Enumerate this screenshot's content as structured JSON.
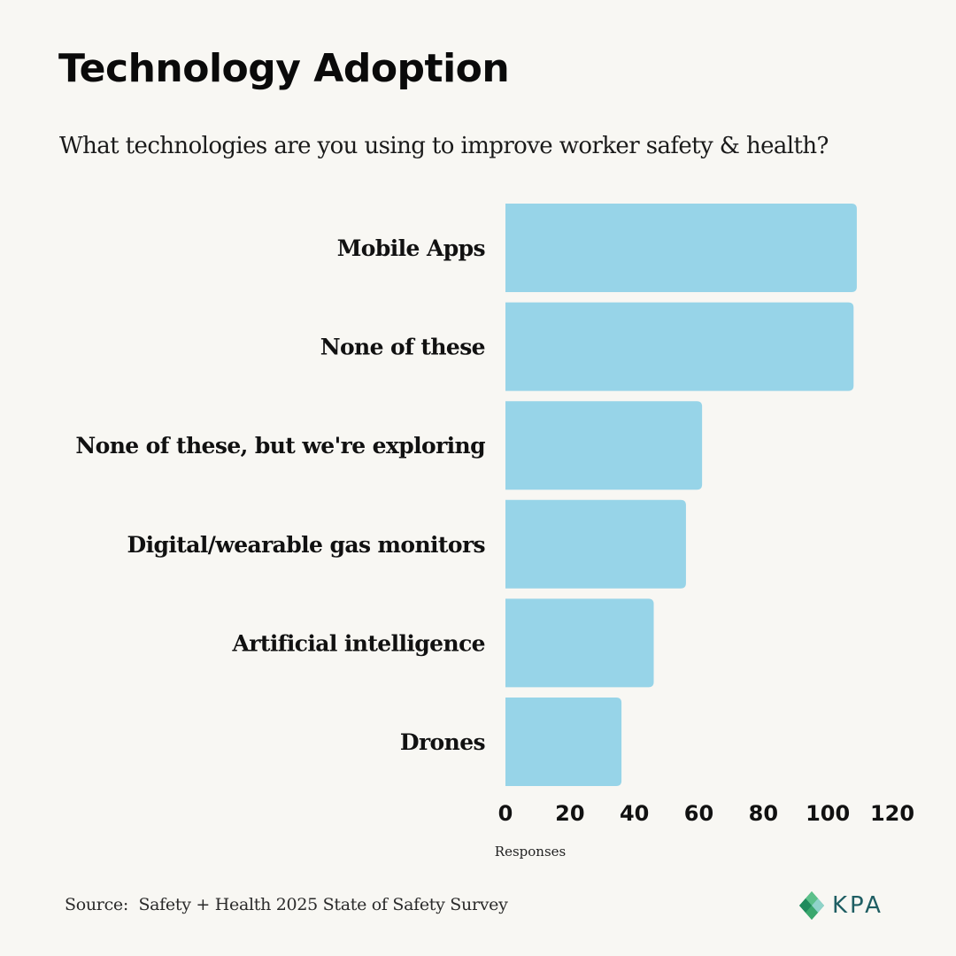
{
  "header": {
    "title": "Technology Adoption",
    "subtitle": "What technologies are you using to improve worker safety & health?"
  },
  "footer": {
    "source": "Source:  Safety + Health 2025 State of Safety Survey",
    "logo_text": "KPA",
    "logo_icon": "kpa-diamond-logo-icon"
  },
  "colors": {
    "bar": "#97d4e8",
    "background": "#f8f7f3",
    "logo": "#1f5e63",
    "logo_green": "#3aa76d"
  },
  "chart_data": {
    "type": "bar",
    "orientation": "horizontal",
    "title": "Technology Adoption",
    "subtitle": "What technologies are you using to improve worker safety & health?",
    "categories": [
      "Mobile Apps",
      "None of these",
      "None of these, but we're exploring",
      "Digital/wearable gas monitors",
      "Artificial intelligence",
      "Drones"
    ],
    "values": [
      109,
      108,
      61,
      56,
      46,
      36
    ],
    "xlabel": "Responses",
    "ylabel": "",
    "xlim": [
      0,
      120
    ],
    "xticks": [
      0,
      20,
      40,
      60,
      80,
      100,
      120
    ],
    "grid": false,
    "legend": "none",
    "data_labels": false
  }
}
